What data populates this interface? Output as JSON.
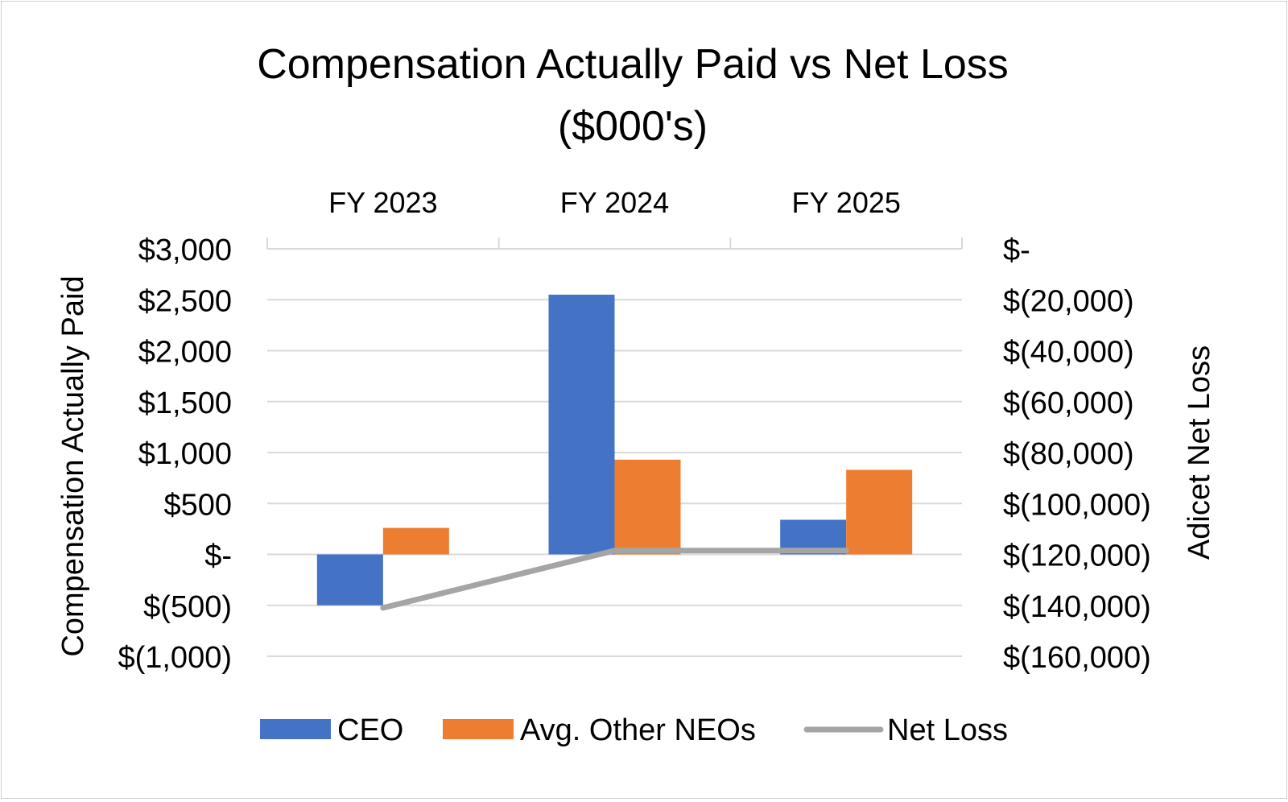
{
  "chart_data": {
    "type": "bar",
    "title_line1": "Compensation Actually Paid vs Net Loss",
    "title_line2": "($000's)",
    "categories": [
      "FY 2023",
      "FY 2024",
      "FY 2025"
    ],
    "series": [
      {
        "name": "CEO",
        "type": "bar",
        "axis": "left",
        "color": "#4472C4",
        "values": [
          -500,
          2550,
          340
        ]
      },
      {
        "name": "Avg. Other NEOs",
        "type": "bar",
        "axis": "left",
        "color": "#ED7D31",
        "values": [
          260,
          930,
          830
        ]
      },
      {
        "name": "Net Loss",
        "type": "line",
        "axis": "right",
        "color": "#A5A5A5",
        "values": [
          -141000,
          -118500,
          -118500
        ]
      }
    ],
    "ylabel": "Compensation Actually Paid",
    "y2label": "Adicet Net Loss",
    "ylim": [
      -1000,
      3000
    ],
    "y2lim": [
      -160000,
      0
    ],
    "y_ticks": [
      3000,
      2500,
      2000,
      1500,
      1000,
      500,
      0,
      -500,
      -1000
    ],
    "y_tick_labels": [
      "$3,000",
      "$2,500",
      "$2,000",
      "$1,500",
      "$1,000",
      "$500",
      "$-",
      "$(500)",
      "$(1,000)"
    ],
    "y2_ticks": [
      0,
      -20000,
      -40000,
      -60000,
      -80000,
      -100000,
      -120000,
      -140000,
      -160000
    ],
    "y2_tick_labels": [
      "$-",
      "$(20,000)",
      "$(40,000)",
      "$(60,000)",
      "$(80,000)",
      "$(100,000)",
      "$(120,000)",
      "$(140,000)",
      "$(160,000)"
    ],
    "x_axis_position": "top",
    "grid": true,
    "legend_position": "bottom"
  }
}
